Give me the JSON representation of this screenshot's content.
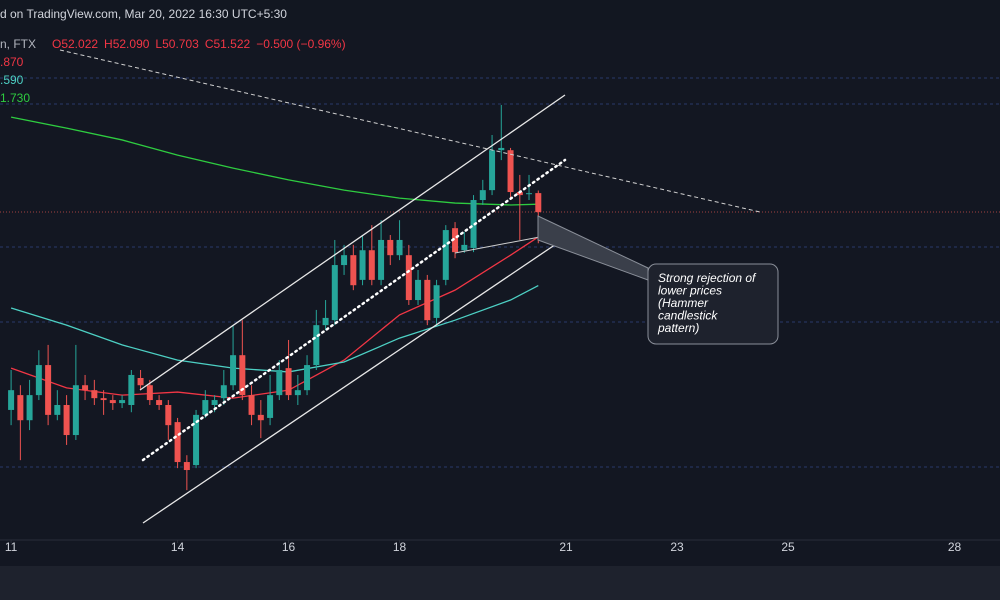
{
  "chart_data": {
    "type": "candlestick",
    "watermark": "d on TradingView.com, Mar 20, 2022 16:30 UTC+5:30",
    "symbol": "n, FTX",
    "ohlc_labels": [
      "O52.022",
      "H52.090",
      "L50.703",
      "C51.522"
    ],
    "change": "−0.500 (−0.96%)",
    "annotation": [
      "Strong rejection of",
      "lower prices",
      "(Hammer",
      "candlestick",
      "pattern)"
    ],
    "xlim": [
      10.8,
      28.82
    ],
    "xticks": [
      11,
      14,
      16,
      18,
      21,
      23,
      25,
      28
    ],
    "ylim": [
      42.9,
      57.1
    ],
    "up_color": "#26a69a",
    "down_color": "#ef5350",
    "candles": {
      "x": [
        11,
        11.167,
        11.333,
        11.5,
        11.667,
        11.833,
        12,
        12.167,
        12.333,
        12.5,
        12.667,
        12.833,
        13,
        13.167,
        13.333,
        13.5,
        13.667,
        13.833,
        14,
        14.167,
        14.333,
        14.5,
        14.667,
        14.833,
        15,
        15.167,
        15.333,
        15.5,
        15.667,
        15.833,
        16,
        16.167,
        16.333,
        16.5,
        16.667,
        16.833,
        17,
        17.167,
        17.333,
        17.5,
        17.667,
        17.833,
        18,
        18.167,
        18.333,
        18.5,
        18.667,
        18.833,
        19,
        19.167,
        19.333,
        19.5,
        19.667,
        19.833,
        20,
        20.167,
        20.333,
        20.5
      ],
      "open": [
        46.32,
        46.71,
        46.05,
        46.71,
        47.5,
        46.19,
        46.45,
        45.66,
        46.97,
        46.84,
        46.63,
        46.58,
        46.5,
        46.45,
        47.16,
        46.97,
        46.58,
        46.45,
        46.0,
        44.95,
        44.87,
        46.19,
        46.45,
        46.63,
        46.97,
        47.76,
        46.71,
        46.19,
        46.11,
        46.71,
        47.42,
        46.71,
        46.84,
        47.5,
        48.55,
        48.68,
        50.13,
        50.39,
        49.74,
        50.52,
        49.74,
        50.79,
        50.39,
        50.39,
        49.21,
        49.74,
        48.74,
        49.74,
        51.1,
        50.52,
        50.58,
        51.84,
        52.1,
        53.15,
        53.15,
        52.05,
        52.0,
        52.022
      ],
      "high": [
        47.37,
        46.97,
        47.11,
        47.89,
        48.03,
        46.84,
        46.71,
        48.03,
        47.24,
        47.11,
        46.84,
        46.71,
        46.71,
        47.37,
        47.37,
        47.11,
        46.71,
        46.58,
        46.11,
        45.13,
        46.32,
        46.84,
        46.71,
        47.37,
        48.55,
        48.68,
        46.97,
        46.58,
        47.24,
        47.63,
        48.16,
        47.24,
        47.76,
        48.95,
        49.21,
        50.79,
        50.66,
        50.66,
        50.92,
        51.18,
        51.31,
        50.92,
        51.31,
        50.66,
        50.0,
        49.87,
        49.74,
        51.18,
        51.26,
        51.0,
        51.97,
        52.37,
        53.55,
        54.34,
        53.21,
        52.5,
        52.5,
        52.09
      ],
      "low": [
        45.92,
        45.0,
        45.79,
        46.58,
        45.92,
        46.05,
        45.4,
        45.53,
        46.58,
        46.45,
        46.19,
        46.32,
        46.37,
        46.26,
        46.84,
        46.45,
        46.32,
        45.53,
        44.79,
        44.21,
        44.79,
        46.11,
        46.26,
        46.45,
        46.84,
        46.58,
        45.92,
        45.58,
        45.92,
        46.58,
        46.58,
        46.45,
        46.71,
        47.37,
        48.42,
        48.55,
        49.87,
        49.47,
        49.6,
        49.6,
        49.6,
        50.13,
        50.26,
        49.08,
        49.08,
        48.55,
        48.55,
        49.6,
        50.31,
        50.45,
        50.47,
        51.71,
        51.97,
        52.89,
        51.84,
        50.79,
        51.84,
        50.703
      ],
      "close": [
        46.84,
        46.05,
        46.71,
        47.5,
        46.19,
        46.45,
        45.66,
        46.97,
        46.84,
        46.63,
        46.58,
        46.5,
        46.58,
        47.24,
        46.97,
        46.58,
        46.45,
        45.92,
        44.95,
        44.74,
        46.19,
        46.58,
        46.58,
        46.97,
        47.76,
        46.71,
        46.19,
        46.05,
        46.71,
        47.37,
        46.71,
        46.84,
        47.5,
        48.55,
        48.74,
        50.13,
        50.39,
        49.6,
        50.52,
        49.74,
        50.79,
        50.39,
        50.79,
        49.21,
        49.74,
        48.68,
        49.6,
        51.05,
        50.47,
        50.66,
        51.84,
        52.1,
        53.15,
        53.21,
        52.05,
        51.97,
        52.02,
        51.522
      ]
    },
    "moving_averages": [
      {
        "label": ".870",
        "color": "#f23645",
        "x": [
          11,
          12,
          13,
          14,
          15,
          16,
          17,
          18,
          19,
          20,
          20.5
        ],
        "values": [
          47.42,
          46.9,
          46.71,
          46.79,
          46.63,
          46.84,
          47.63,
          48.82,
          49.47,
          50.39,
          50.87
        ]
      },
      {
        "label": ".590",
        "color": "#4dd0c4",
        "x": [
          11,
          12,
          13,
          14,
          15,
          16,
          17,
          18,
          19,
          20,
          20.5
        ],
        "values": [
          49.0,
          48.55,
          48.03,
          47.63,
          47.42,
          47.32,
          47.58,
          48.21,
          48.68,
          49.21,
          49.59
        ]
      },
      {
        "label": "1.730",
        "color": "#2ecc40",
        "x": [
          11,
          12,
          13,
          14,
          15,
          16,
          17,
          18,
          19,
          20,
          20.5
        ],
        "values": [
          54.02,
          53.73,
          53.42,
          53.02,
          52.68,
          52.37,
          52.1,
          51.89,
          51.76,
          51.71,
          51.73
        ]
      }
    ]
  }
}
